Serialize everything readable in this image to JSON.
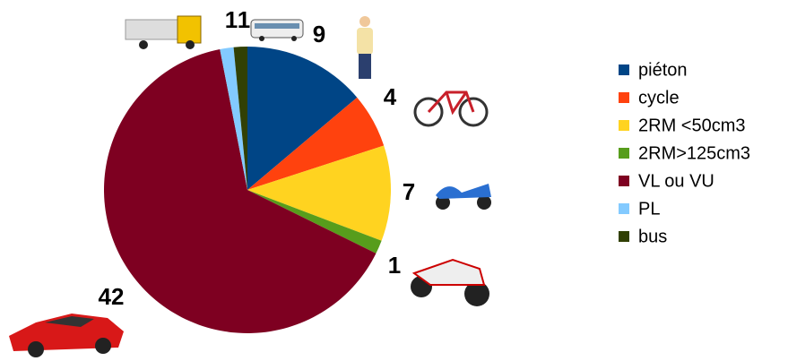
{
  "chart_data": {
    "type": "pie",
    "categories": [
      "piéton",
      "cycle",
      "2RM <50cm3",
      "2RM>125cm3",
      "VL ou VU",
      "PL",
      "bus"
    ],
    "values": [
      9,
      4,
      7,
      1,
      42,
      1,
      1
    ],
    "colors": [
      "#004586",
      "#ff420e",
      "#ffd320",
      "#579d1c",
      "#7e0021",
      "#83caff",
      "#314004"
    ],
    "legend": "right"
  }
}
